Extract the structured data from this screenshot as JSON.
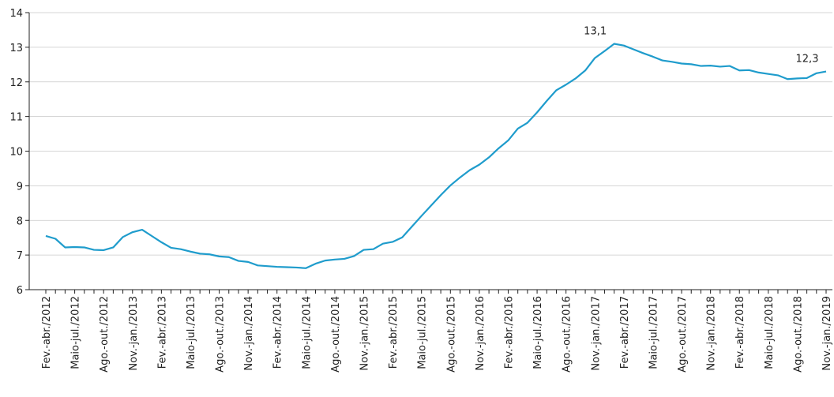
{
  "chart_data": {
    "type": "line",
    "categories": [
      "Fev.-abr./2012",
      null,
      null,
      "Maio-jul./2012",
      null,
      null,
      "Ago.-out./2012",
      null,
      null,
      "Nov.-jan./2013",
      null,
      null,
      "Fev.-abr./2013",
      null,
      null,
      "Maio-jul./2013",
      null,
      null,
      "Ago.-out./2013",
      null,
      null,
      "Nov.-jan./2014",
      null,
      null,
      "Fev.-abr./2014",
      null,
      null,
      "Maio-jul./2014",
      null,
      null,
      "Ago.-out./2014",
      null,
      null,
      "Nov.-jan./2015",
      null,
      null,
      "Fev.-abr./2015",
      null,
      null,
      "Maio-jul./2015",
      null,
      null,
      "Ago.-out./2015",
      null,
      null,
      "Nov.-jan./2016",
      null,
      null,
      "Fev.-abr./2016",
      null,
      null,
      "Maio-jul./2016",
      null,
      null,
      "Ago.-out./2016",
      null,
      null,
      "Nov.-jan./2017",
      null,
      null,
      "Fev.-abr./2017",
      null,
      null,
      "Maio-jul./2017",
      null,
      null,
      "Ago.-out./2017",
      null,
      null,
      "Nov.-jan./2018",
      null,
      null,
      "Fev.-abr./2018",
      null,
      null,
      "Maio-jul./2018",
      null,
      null,
      "Ago.-out./2018",
      null,
      null,
      "Nov.-jan./2019"
    ],
    "values": [
      7.55,
      7.47,
      7.22,
      7.23,
      7.22,
      7.15,
      7.14,
      7.22,
      7.52,
      7.66,
      7.73,
      7.55,
      7.37,
      7.21,
      7.17,
      7.1,
      7.04,
      7.02,
      6.96,
      6.94,
      6.83,
      6.8,
      6.7,
      6.68,
      6.66,
      6.65,
      6.64,
      6.62,
      6.75,
      6.84,
      6.87,
      6.89,
      6.97,
      7.15,
      7.17,
      7.33,
      7.38,
      7.51,
      7.82,
      8.13,
      8.43,
      8.73,
      9.01,
      9.24,
      9.45,
      9.61,
      9.82,
      10.08,
      10.31,
      10.65,
      10.82,
      11.12,
      11.45,
      11.76,
      11.92,
      12.1,
      12.33,
      12.69,
      12.89,
      13.1,
      13.05,
      12.94,
      12.83,
      12.73,
      12.62,
      12.58,
      12.53,
      12.51,
      12.46,
      12.47,
      12.44,
      12.46,
      12.33,
      12.34,
      12.27,
      12.23,
      12.19,
      12.08,
      12.1,
      12.11,
      12.25,
      12.3
    ],
    "value_labels": [
      null,
      null,
      null,
      null,
      null,
      null,
      null,
      null,
      null,
      null,
      null,
      null,
      null,
      null,
      null,
      null,
      null,
      null,
      null,
      null,
      null,
      null,
      null,
      null,
      null,
      null,
      null,
      null,
      null,
      null,
      null,
      null,
      null,
      null,
      null,
      null,
      null,
      null,
      null,
      null,
      null,
      null,
      null,
      null,
      null,
      null,
      null,
      null,
      null,
      null,
      null,
      null,
      null,
      null,
      null,
      null,
      null,
      null,
      null,
      "13,1",
      null,
      null,
      null,
      null,
      null,
      null,
      null,
      null,
      null,
      null,
      null,
      null,
      null,
      null,
      null,
      null,
      null,
      null,
      null,
      null,
      null,
      "12,3"
    ],
    "color": "#1f9ccc",
    "ylim": [
      6,
      14
    ],
    "yticks": [
      6,
      7,
      8,
      9,
      10,
      11,
      12,
      13,
      14
    ],
    "grid": true
  }
}
